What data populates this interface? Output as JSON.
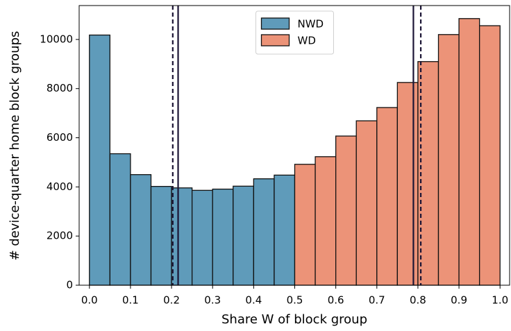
{
  "chart_data": {
    "type": "histogram",
    "xlabel": "Share W of block group",
    "ylabel": "# device-quarter home block groups",
    "series": [
      {
        "name": "NWD",
        "color": "#5f9bba",
        "bins": [
          0,
          0.05,
          0.1,
          0.15,
          0.2,
          0.25,
          0.3,
          0.35,
          0.4,
          0.45,
          0.5
        ],
        "values": [
          10180,
          5350,
          4500,
          4020,
          3960,
          3860,
          3910,
          4030,
          4330,
          4480
        ]
      },
      {
        "name": "WD",
        "color": "#ec9378",
        "bins": [
          0.5,
          0.55,
          0.6,
          0.65,
          0.7,
          0.75,
          0.8,
          0.85,
          0.9,
          0.95,
          1
        ],
        "values": [
          4920,
          5230,
          6070,
          6690,
          7230,
          8250,
          9100,
          10200,
          10850,
          10560
        ]
      }
    ],
    "vlines": [
      {
        "x": 0.203,
        "style": "dashed",
        "color": "#1c1535"
      },
      {
        "x": 0.216,
        "style": "solid",
        "color": "#1c1535"
      },
      {
        "x": 0.789,
        "style": "solid",
        "color": "#1c1535"
      },
      {
        "x": 0.807,
        "style": "dashed",
        "color": "#1c1535"
      }
    ],
    "xlim": [
      -0.025,
      1.025
    ],
    "ylim": [
      0,
      11380
    ],
    "xticks": [
      {
        "value": 0,
        "label": "0.0"
      },
      0.1,
      0.2,
      0.3,
      0.4,
      0.5,
      0.6,
      0.7,
      0.8,
      0.9,
      {
        "value": 1,
        "label": "1.0"
      }
    ],
    "yticks": [
      0,
      2000,
      4000,
      6000,
      8000,
      10000
    ],
    "legend": "upper center"
  }
}
